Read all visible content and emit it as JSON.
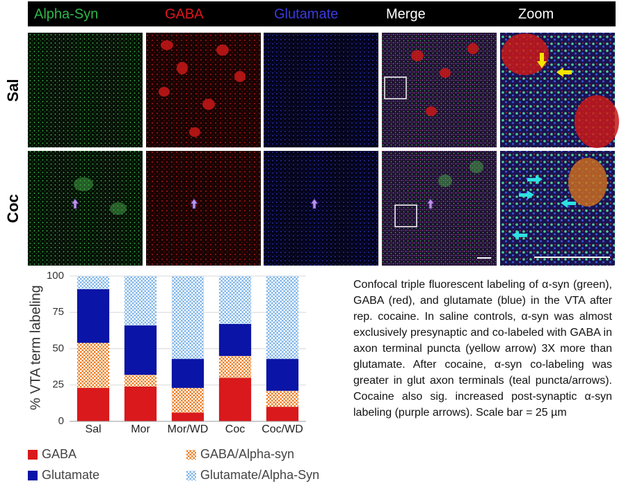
{
  "headers": [
    "Alpha-Syn",
    "GABA",
    "Glutamate",
    "Merge",
    "Zoom"
  ],
  "row_labels": [
    "Sal",
    "Coc"
  ],
  "caption": "Confocal triple fluorescent labeling of α-syn (green), GABA (red), and glutamate (blue) in the VTA after rep. cocaine.  In saline controls, α-syn was almost exclusively presynaptic and co-labeled with GABA in axon terminal puncta (yellow arrow) 3X more than glutamate.  After cocaine, α-syn co-labeling was greater in glut axon terminals (teal puncta/arrows).  Cocaine also sig. increased post-synaptic α-syn labeling (purple arrows). Scale bar = 25 µm",
  "chart_data": {
    "type": "stacked-bar",
    "y_label": "% VTA term labeling",
    "categories": [
      "Sal",
      "Mor",
      "Mor/WD",
      "Coc",
      "Coc/WD"
    ],
    "series": [
      {
        "name": "GABA",
        "color": "#d9191c",
        "values": [
          23,
          24,
          6,
          30,
          10
        ]
      },
      {
        "name": "GABA/Alpha-syn",
        "color": "#ee7d22",
        "hatch": true,
        "values": [
          31,
          8,
          17,
          15,
          11
        ]
      },
      {
        "name": "Glutamate",
        "color": "#0a14a6",
        "values": [
          37,
          34,
          20,
          22,
          22
        ]
      },
      {
        "name": "Glutamate/Alpha-Syn",
        "color": "#7fb5e8",
        "hatch": true,
        "values": [
          9,
          34,
          57,
          33,
          57
        ]
      }
    ],
    "ylim": [
      0,
      100
    ],
    "yticks": [
      0,
      25,
      50,
      75,
      100
    ]
  }
}
